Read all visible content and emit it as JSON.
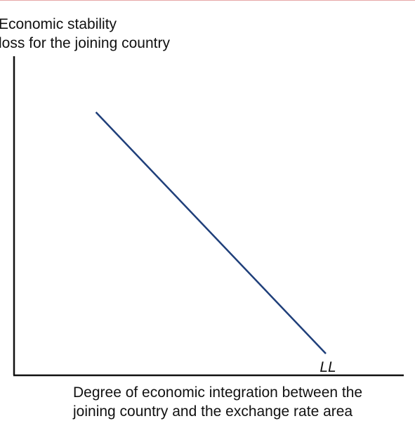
{
  "chart_data": {
    "type": "line",
    "title": "",
    "ylabel_lines": [
      "Economic stability",
      "loss for the joining country"
    ],
    "xlabel_lines": [
      "Degree of economic integration between the",
      "joining country and the exchange rate area"
    ],
    "xlim": [
      0,
      1
    ],
    "ylim": [
      0,
      1
    ],
    "grid": false,
    "legend": "none",
    "series": [
      {
        "name": "LL",
        "color": "#1f3f7a",
        "x": [
          0.21,
          0.8
        ],
        "y": [
          0.97,
          0.08
        ]
      }
    ]
  }
}
